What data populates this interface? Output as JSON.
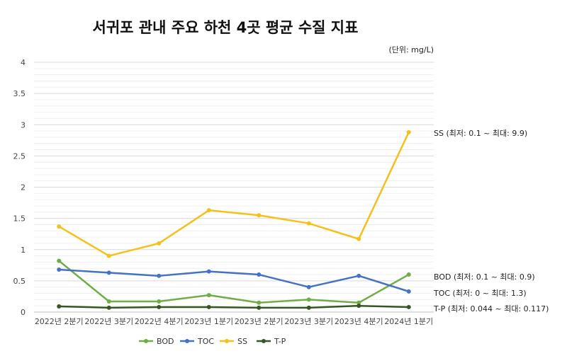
{
  "chart_data": {
    "type": "line",
    "title": "서귀포 관내 주요 하천 4곳 평균 수질 지표",
    "unit_label": "(단위: mg/L)",
    "categories": [
      "2022년  2분기",
      "2022년  3분기",
      "2022년  4분기",
      "2023년  1분기",
      "2023년  2분기",
      "2023년  3분기",
      "2023년  4분기",
      "2024년  1분기"
    ],
    "y_ticks": [
      "0",
      "0.5",
      "1",
      "1.5",
      "2",
      "2.5",
      "3",
      "3.5",
      "4"
    ],
    "ylim": [
      0,
      4
    ],
    "grid": true,
    "legend_position": "bottom",
    "series": [
      {
        "name": "BOD",
        "color": "#70ad47",
        "values": [
          0.82,
          0.17,
          0.17,
          0.27,
          0.15,
          0.2,
          0.15,
          0.6
        ]
      },
      {
        "name": "TOC",
        "color": "#4472c4",
        "values": [
          0.68,
          0.63,
          0.58,
          0.65,
          0.6,
          0.4,
          0.58,
          0.33
        ]
      },
      {
        "name": "SS",
        "color": "#f5c01a",
        "values": [
          1.37,
          0.9,
          1.1,
          1.63,
          1.55,
          1.42,
          1.17,
          2.88
        ]
      },
      {
        "name": "T-P",
        "color": "#375623",
        "values": [
          0.09,
          0.07,
          0.08,
          0.08,
          0.07,
          0.07,
          0.1,
          0.08
        ]
      }
    ],
    "annotations": [
      {
        "series": "SS",
        "text": "SS (최저: 0.1 ~ 최대: 9.9)"
      },
      {
        "series": "BOD",
        "text": "BOD (최저: 0.1 ~ 최대: 0.9)"
      },
      {
        "series": "TOC",
        "text": "TOC (최저: 0 ~ 최대: 1.3)"
      },
      {
        "series": "T-P",
        "text": "T-P (최저: 0.044 ~ 최대: 0.117)"
      }
    ]
  }
}
